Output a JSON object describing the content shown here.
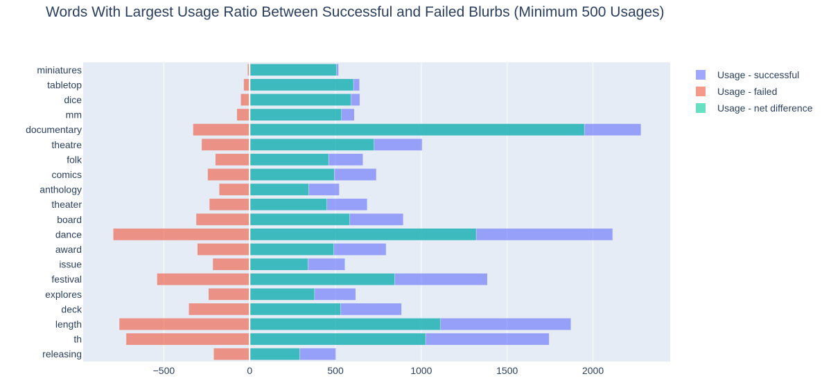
{
  "chart_data": {
    "type": "bar",
    "orientation": "horizontal",
    "barmode": "overlay",
    "title": "Words With Largest Usage Ratio Between Successful and Failed Blurbs (Minimum 500 Usages)",
    "xlabel": "",
    "ylabel": "",
    "xlim": [
      -970,
      2450
    ],
    "xticks": [
      -500,
      0,
      500,
      1000,
      1500,
      2000
    ],
    "xtick_labels": [
      "−500",
      "0",
      "500",
      "1000",
      "1500",
      "2000"
    ],
    "categories": [
      "miniatures",
      "tabletop",
      "dice",
      "mm",
      "documentary",
      "theatre",
      "folk",
      "comics",
      "anthology",
      "theater",
      "board",
      "dance",
      "award",
      "issue",
      "festival",
      "explores",
      "deck",
      "length",
      "th",
      "releasing"
    ],
    "series": [
      {
        "name": "Usage - successful",
        "color": "#636efa",
        "values": [
          518,
          640,
          642,
          610,
          2280,
          1005,
          660,
          738,
          522,
          685,
          895,
          2115,
          795,
          555,
          1385,
          618,
          885,
          1872,
          1745,
          502
        ]
      },
      {
        "name": "Usage - failed",
        "color": "#ef553b",
        "values": [
          -12,
          -35,
          -52,
          -75,
          -330,
          -280,
          -200,
          -245,
          -178,
          -235,
          -312,
          -795,
          -305,
          -215,
          -540,
          -240,
          -355,
          -760,
          -720,
          -210
        ]
      },
      {
        "name": "Usage - net difference",
        "color": "#00cc96",
        "values": [
          506,
          605,
          590,
          535,
          1950,
          725,
          460,
          493,
          344,
          450,
          583,
          1320,
          490,
          340,
          845,
          378,
          530,
          1112,
          1025,
          292
        ]
      }
    ],
    "legend_position": "top-right",
    "grid": true,
    "plot_background": "#e5ecf6"
  }
}
